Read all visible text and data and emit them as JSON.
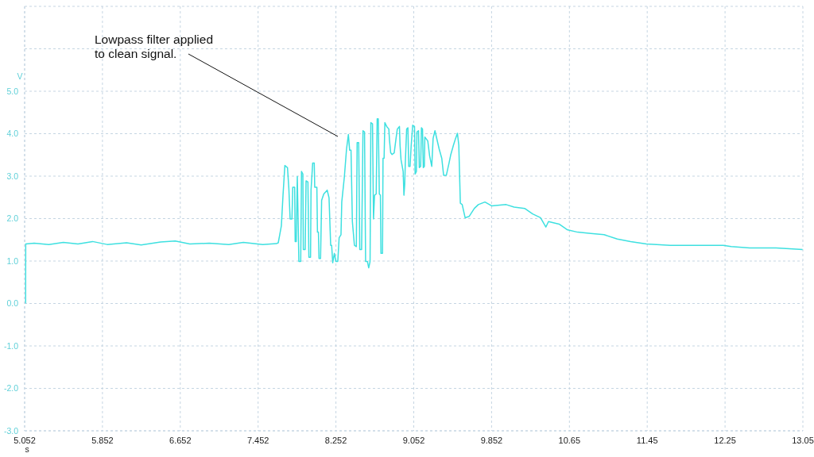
{
  "chart_data": {
    "type": "line",
    "xlabel": "s",
    "ylabel": "V",
    "annotations": [
      "Lowpass filter applied\nto clean signal."
    ],
    "x": [
      5.062,
      5.063,
      5.15,
      5.3,
      5.45,
      5.6,
      5.75,
      5.9,
      6.1,
      6.25,
      6.45,
      6.6,
      6.75,
      6.95,
      7.15,
      7.3,
      7.5,
      7.64,
      7.659,
      7.672,
      7.691,
      7.708,
      7.727,
      7.754,
      7.768,
      7.781,
      7.8,
      7.808,
      7.828,
      7.833,
      7.844,
      7.855,
      7.871,
      7.89,
      7.898,
      7.912,
      7.917,
      7.936,
      7.945,
      7.964,
      7.974,
      7.991,
      7.996,
      8.013,
      8.029,
      8.034,
      8.056,
      8.062,
      8.072,
      8.078,
      8.094,
      8.105,
      8.127,
      8.162,
      8.181,
      8.198,
      8.208,
      8.219,
      8.236,
      8.252,
      8.271,
      8.285,
      8.304,
      8.312,
      8.339,
      8.361,
      8.38,
      8.393,
      8.407,
      8.421,
      8.442,
      8.462,
      8.47,
      8.486,
      8.497,
      8.516,
      8.53,
      8.546,
      8.557,
      8.576,
      8.589,
      8.603,
      8.611,
      8.628,
      8.638,
      8.649,
      8.666,
      8.676,
      8.687,
      8.698,
      8.709,
      8.715,
      8.731,
      8.736,
      8.747,
      8.755,
      8.774,
      8.796,
      8.802,
      8.815,
      8.829,
      8.851,
      8.87,
      8.883,
      8.905,
      8.911,
      8.921,
      8.943,
      8.951,
      8.959,
      8.965,
      8.979,
      8.992,
      9.0,
      9.014,
      9.025,
      9.041,
      9.06,
      9.066,
      9.079,
      9.085,
      9.101,
      9.109,
      9.123,
      9.131,
      9.142,
      9.15,
      9.161,
      9.166,
      9.196,
      9.215,
      9.237,
      9.251,
      9.27,
      9.291,
      9.313,
      9.34,
      9.359,
      9.387,
      9.414,
      9.433,
      9.46,
      9.482,
      9.501,
      9.515,
      9.531,
      9.55,
      9.58,
      9.621,
      9.675,
      9.716,
      9.784,
      9.852,
      10.002,
      10.083,
      10.192,
      10.274,
      10.355,
      10.41,
      10.437,
      10.546,
      10.628,
      10.736,
      10.872,
      11.008,
      11.144,
      11.281,
      11.444,
      11.689,
      11.961,
      12.233,
      12.315,
      12.505,
      12.777,
      13.049
    ],
    "series": [
      {
        "color": "#3ee0e0",
        "values": [
          0.0,
          1.4,
          1.42,
          1.39,
          1.44,
          1.4,
          1.46,
          1.39,
          1.43,
          1.38,
          1.45,
          1.47,
          1.4,
          1.42,
          1.39,
          1.44,
          1.39,
          1.41,
          1.43,
          1.59,
          1.83,
          2.55,
          3.25,
          3.2,
          2.71,
          1.99,
          1.99,
          2.74,
          2.74,
          1.46,
          1.46,
          2.99,
          0.99,
          0.99,
          3.11,
          3.05,
          1.27,
          1.27,
          2.89,
          2.86,
          1.09,
          1.09,
          2.67,
          3.31,
          3.31,
          2.74,
          2.74,
          1.68,
          1.68,
          1.06,
          1.06,
          2.43,
          2.58,
          2.67,
          2.49,
          1.37,
          1.37,
          0.96,
          1.18,
          0.99,
          0.99,
          1.55,
          1.62,
          2.39,
          2.99,
          3.64,
          3.98,
          3.61,
          3.61,
          1.93,
          1.37,
          1.34,
          3.79,
          3.79,
          1.27,
          1.27,
          4.07,
          4.04,
          0.99,
          0.99,
          0.84,
          0.99,
          4.26,
          4.23,
          1.99,
          2.55,
          2.58,
          4.35,
          4.35,
          2.58,
          2.55,
          1.18,
          1.18,
          3.42,
          3.42,
          4.26,
          4.17,
          4.11,
          3.86,
          3.55,
          3.51,
          3.55,
          3.89,
          4.11,
          4.17,
          3.73,
          3.39,
          3.11,
          2.55,
          2.8,
          3.3,
          4.11,
          4.14,
          3.23,
          3.23,
          3.7,
          4.2,
          4.17,
          3.05,
          3.11,
          4.04,
          4.07,
          3.2,
          3.23,
          4.14,
          4.11,
          3.2,
          3.23,
          3.92,
          3.83,
          3.48,
          3.23,
          3.89,
          4.07,
          3.86,
          3.64,
          3.42,
          3.02,
          3.02,
          3.3,
          3.51,
          3.73,
          3.89,
          4.01,
          3.73,
          2.36,
          2.33,
          2.02,
          2.05,
          2.24,
          2.33,
          2.39,
          2.3,
          2.33,
          2.27,
          2.24,
          2.11,
          2.02,
          1.8,
          1.93,
          1.87,
          1.74,
          1.68,
          1.65,
          1.62,
          1.52,
          1.46,
          1.4,
          1.37,
          1.37,
          1.37,
          1.34,
          1.31,
          1.31,
          1.27
        ]
      }
    ],
    "xlim": [
      5.052,
      13.052
    ],
    "xticks": [
      5.052,
      5.852,
      6.652,
      7.452,
      8.252,
      9.052,
      9.852,
      {
        "value": 10.652,
        "label": "10.65"
      },
      {
        "value": 11.452,
        "label": "11.45"
      },
      {
        "value": 12.252,
        "label": "12.25"
      },
      {
        "value": 13.052,
        "label": "13.05"
      }
    ],
    "ylim": [
      -3,
      7
    ],
    "yticks": [
      {
        "value": -3,
        "label": "-3.0"
      },
      {
        "value": -2,
        "label": "-2.0"
      },
      {
        "value": -1,
        "label": "-1.0"
      },
      {
        "value": 0,
        "label": "0.0"
      },
      {
        "value": 1,
        "label": "1.0"
      },
      {
        "value": 2,
        "label": "2.0"
      },
      {
        "value": 3,
        "label": "3.0"
      },
      {
        "value": 4,
        "label": "4.0"
      },
      {
        "value": 5,
        "label": "5.0"
      },
      {
        "value": 6,
        "label": null
      },
      {
        "value": 7,
        "label": null
      }
    ],
    "grid": true
  }
}
